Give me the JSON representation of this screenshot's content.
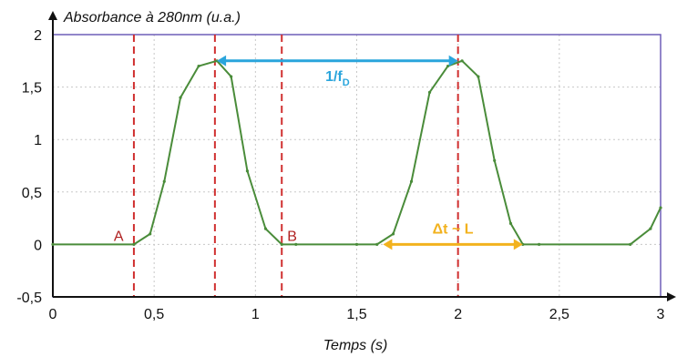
{
  "chart_data": {
    "type": "line",
    "ylabel": "Absorbance à 280nm (u.a.)",
    "xlabel": "Temps (s)",
    "xlim": [
      0,
      3
    ],
    "ylim": [
      -0.5,
      2
    ],
    "x_ticks": [
      0,
      0.5,
      1,
      1.5,
      2,
      2.5,
      3
    ],
    "x_tick_labels": [
      "0",
      "0,5",
      "1",
      "1,5",
      "2",
      "2,5",
      "3"
    ],
    "y_ticks": [
      -0.5,
      0,
      0.5,
      1,
      1.5,
      2
    ],
    "y_tick_labels": [
      "-0,5",
      "0",
      "0,5",
      "1",
      "1,5",
      "2"
    ],
    "grid": true,
    "series": [
      {
        "color": "#4a8c3a",
        "x": [
          0,
          0.4,
          0.48,
          0.55,
          0.63,
          0.72,
          0.81,
          0.88,
          0.96,
          1.05,
          1.13,
          1.2,
          1.5,
          1.6,
          1.68,
          1.77,
          1.86,
          1.95,
          2.02,
          2.1,
          2.18,
          2.26,
          2.32,
          2.4,
          2.85,
          2.95,
          3.0
        ],
        "y": [
          0,
          0,
          0.1,
          0.6,
          1.4,
          1.7,
          1.75,
          1.6,
          0.7,
          0.15,
          0,
          0,
          0,
          0,
          0.1,
          0.6,
          1.45,
          1.7,
          1.75,
          1.6,
          0.8,
          0.2,
          0,
          0,
          0,
          0.15,
          0.35
        ]
      }
    ],
    "vlines": [
      {
        "x": 0.4,
        "color": "#d03030"
      },
      {
        "x": 0.8,
        "color": "#d03030"
      },
      {
        "x": 1.13,
        "color": "#d03030"
      },
      {
        "x": 2.0,
        "color": "#d03030"
      }
    ],
    "frame_color": "#6f5fb8",
    "markers": [
      {
        "label": "A",
        "x": 0.4,
        "y": 0
      },
      {
        "label": "B",
        "x": 1.13,
        "y": 0
      }
    ],
    "annotations": [
      {
        "label_main": "1/f",
        "label_sub": "D",
        "x_start": 0.81,
        "x_end": 2.0,
        "y": 1.75,
        "color": "#2aa5dc"
      },
      {
        "label_main": "Δt ~ L",
        "label_sub": "",
        "x_start": 1.63,
        "x_end": 2.32,
        "y": 0,
        "color": "#f2b21e"
      }
    ]
  }
}
